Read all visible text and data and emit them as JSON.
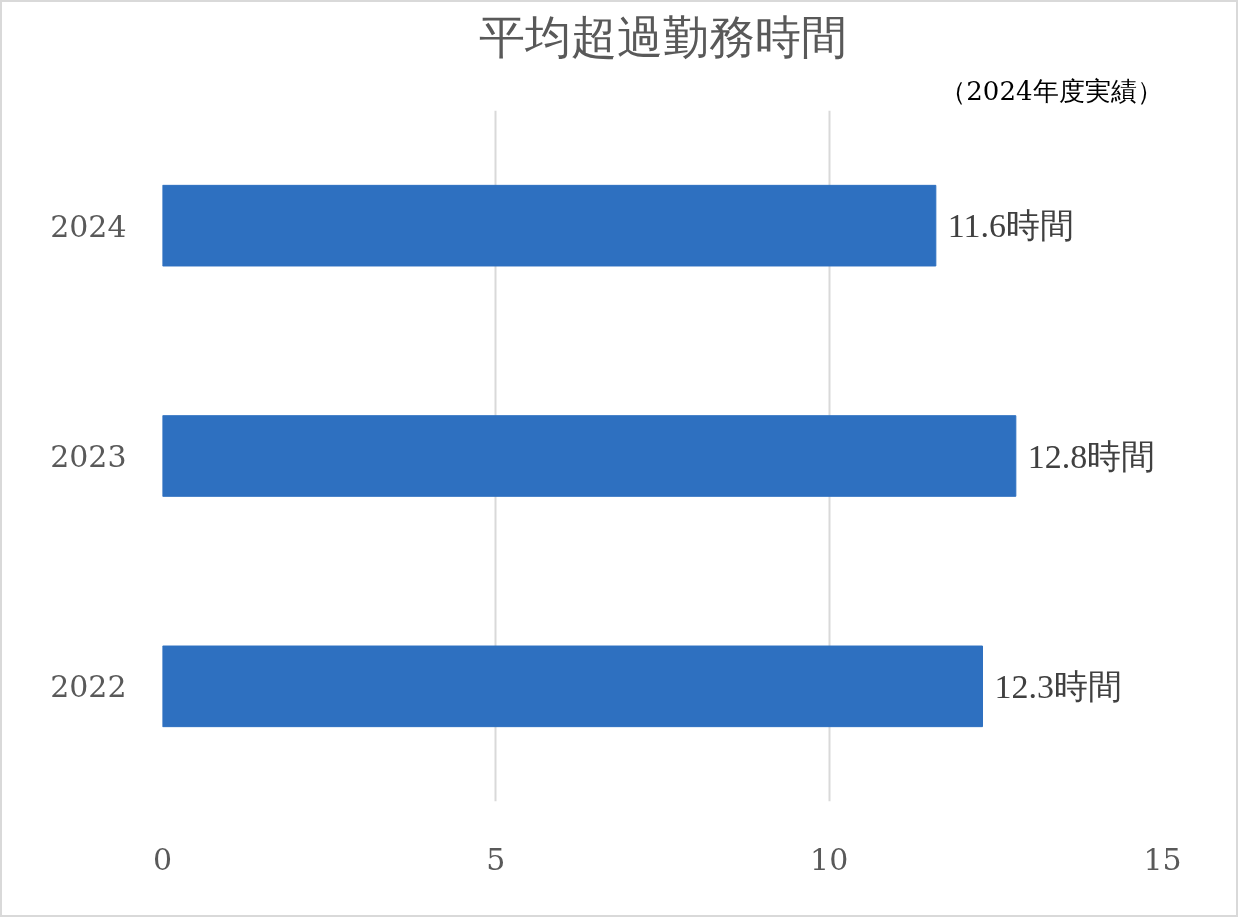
{
  "chart_data": {
    "type": "bar",
    "orientation": "horizontal",
    "title": "平均超過勤務時間",
    "subtitle": "（2024年度実績）",
    "categories": [
      "2024",
      "2023",
      "2022"
    ],
    "values": [
      11.6,
      12.8,
      12.3
    ],
    "value_labels": [
      "11.6時間",
      "12.8時間",
      "12.3時間"
    ],
    "color": "#2e70c0",
    "xlim": [
      0,
      15
    ],
    "xticks": [
      0,
      5,
      10,
      15
    ],
    "grid": "x"
  }
}
